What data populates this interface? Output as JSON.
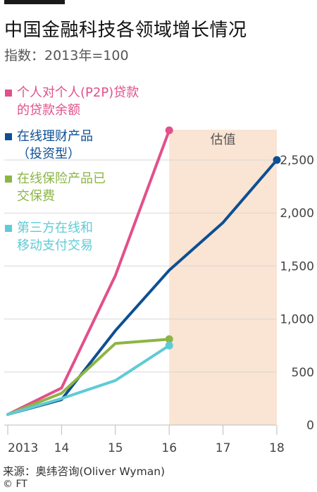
{
  "title": "中国金融科技各领域增长情况",
  "subtitle": "指数：2013年=100",
  "source": "来源：奥纬咨询(Oliver Wyman)",
  "copyright": "© FT",
  "estimate_label": "估值",
  "colors": {
    "p2p": "#e2508a",
    "wealth": "#0d4f93",
    "insurance": "#8cb545",
    "payments": "#5fcbd5",
    "estimate_band": "#fae4d3",
    "grid": "#d7d7d7"
  },
  "chart_data": {
    "type": "line",
    "title": "中国金融科技各领域增长情况",
    "subtitle": "指数：2013年=100",
    "xlabel": "",
    "ylabel": "",
    "x_tick_labels": [
      "2013",
      "14",
      "15",
      "16",
      "17",
      "18"
    ],
    "x": [
      2013,
      2014,
      2015,
      2016,
      2017,
      2018
    ],
    "ylim": [
      0,
      2500
    ],
    "y_ticks": [
      0,
      500,
      1000,
      1500,
      2000,
      2500
    ],
    "y_tick_labels": [
      "0",
      "500",
      "1,000",
      "1,500",
      "2,000",
      "2,500"
    ],
    "estimate_range": [
      2016,
      2018
    ],
    "grid": true,
    "series": [
      {
        "name": "个人对个人(P2P)贷款的贷款余额",
        "legend_lines": [
          "个人对个人(P2P)贷款",
          "的贷款余额"
        ],
        "color": "#e2508a",
        "x": [
          2013,
          2014,
          2015,
          2016
        ],
        "values": [
          100,
          350,
          1410,
          2780
        ]
      },
      {
        "name": "在线理财产品（投资型）",
        "legend_lines": [
          "在线理财产品",
          "（投资型）"
        ],
        "color": "#0d4f93",
        "x": [
          2013,
          2014,
          2015,
          2016,
          2017,
          2018
        ],
        "values": [
          100,
          240,
          890,
          1460,
          1910,
          2500
        ]
      },
      {
        "name": "在线保险产品已交保费",
        "legend_lines": [
          "在线保险产品已",
          "交保费"
        ],
        "color": "#8cb545",
        "x": [
          2013,
          2014,
          2015,
          2016
        ],
        "values": [
          100,
          300,
          770,
          810
        ]
      },
      {
        "name": "第三方在线和移动支付交易",
        "legend_lines": [
          "第三方在线和",
          "移动支付交易"
        ],
        "color": "#5fcbd5",
        "x": [
          2013,
          2014,
          2015,
          2016
        ],
        "values": [
          100,
          250,
          420,
          750
        ]
      }
    ]
  }
}
